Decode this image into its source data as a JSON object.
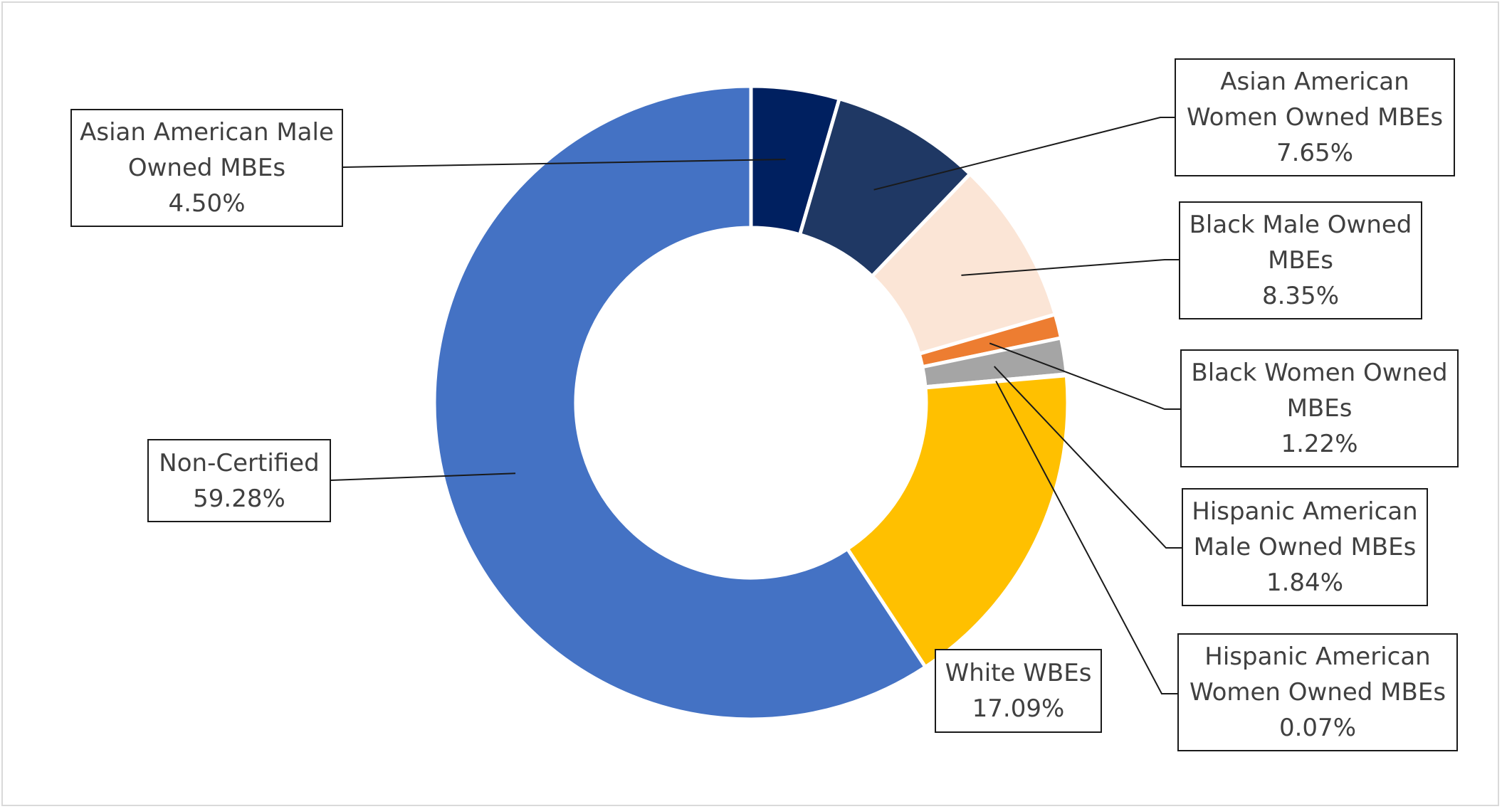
{
  "chart_data": {
    "type": "pie",
    "variant": "donut",
    "title": "",
    "legend": "none",
    "slices": [
      {
        "label": "Asian American Male Owned MBEs",
        "value": 4.5,
        "display": "4.50%",
        "color": "#002060"
      },
      {
        "label": "Asian American Women Owned MBEs",
        "value": 7.65,
        "display": "7.65%",
        "color": "#1f3864"
      },
      {
        "label": "Black Male Owned MBEs",
        "value": 8.35,
        "display": "8.35%",
        "color": "#fbe5d6"
      },
      {
        "label": "Black Women Owned MBEs",
        "value": 1.22,
        "display": "1.22%",
        "color": "#ed7d31"
      },
      {
        "label": "Hispanic American Male Owned MBEs",
        "value": 1.84,
        "display": "1.84%",
        "color": "#a5a5a5"
      },
      {
        "label": "Hispanic American Women Owned MBEs",
        "value": 0.07,
        "display": "0.07%",
        "color": "#5b9bd5"
      },
      {
        "label": "White WBEs",
        "value": 17.09,
        "display": "17.09%",
        "color": "#ffc000"
      },
      {
        "label": "Non-Certified",
        "value": 59.28,
        "display": "59.28%",
        "color": "#4472c4"
      }
    ]
  }
}
